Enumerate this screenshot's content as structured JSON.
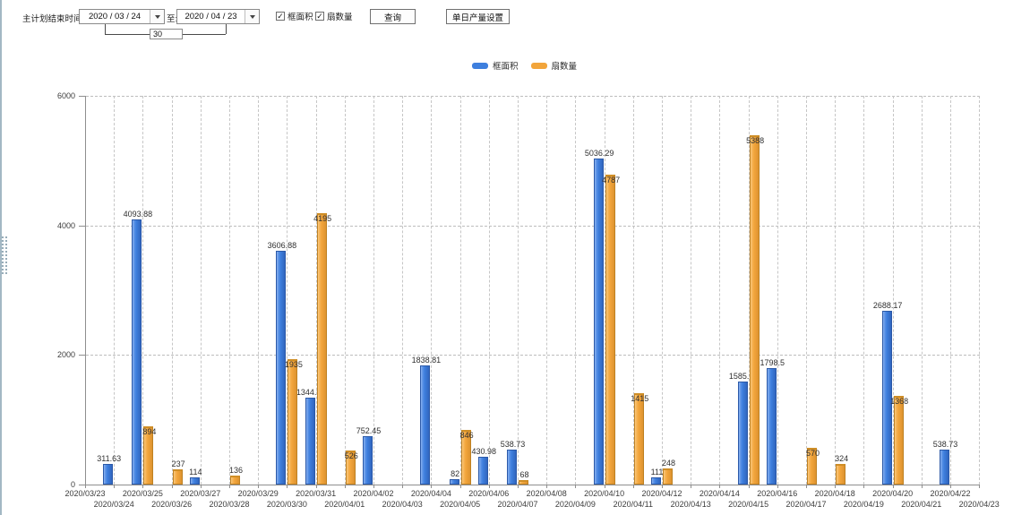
{
  "toolbar": {
    "label_plan_end": "主计划结束时间:",
    "date_from": "2020 / 03 / 24",
    "label_to": "至:",
    "date_to": "2020 / 04 / 23",
    "days_between": "30",
    "checkbox_frame_area": "框面积",
    "checkbox_fan_count": "扇数量",
    "checkbox_checked_glyph": "✓",
    "query_button": "查询",
    "daily_output_button": "单日产量设置"
  },
  "legend": {
    "items": [
      {
        "label": "框面积",
        "color": "#3e7fde"
      },
      {
        "label": "扇数量",
        "color": "#f2a53b"
      }
    ]
  },
  "chart_data": {
    "type": "bar",
    "title": "",
    "xlabel": "",
    "ylabel": "",
    "ylim": [
      0,
      6000
    ],
    "yticks": [
      0,
      2000,
      4000,
      6000
    ],
    "grid": true,
    "legend_position": "top",
    "categories": [
      "2020/03/23",
      "2020/03/24",
      "2020/03/25",
      "2020/03/26",
      "2020/03/27",
      "2020/03/28",
      "2020/03/29",
      "2020/03/30",
      "2020/03/31",
      "2020/04/01",
      "2020/04/02",
      "2020/04/03",
      "2020/04/04",
      "2020/04/05",
      "2020/04/06",
      "2020/04/07",
      "2020/04/08",
      "2020/04/09",
      "2020/04/10",
      "2020/04/11",
      "2020/04/12",
      "2020/04/13",
      "2020/04/14",
      "2020/04/15",
      "2020/04/16",
      "2020/04/17",
      "2020/04/18",
      "2020/04/19",
      "2020/04/20",
      "2020/04/21",
      "2020/04/22",
      "2020/04/23"
    ],
    "series": [
      {
        "name": "框面积",
        "color": "#3e7fde",
        "values": [
          null,
          311.63,
          4093.88,
          null,
          114,
          null,
          null,
          3606.88,
          1344.95,
          null,
          752.45,
          null,
          1838.81,
          82,
          430.98,
          538.73,
          null,
          null,
          5036.29,
          null,
          111,
          null,
          null,
          1585.96,
          1798.5,
          null,
          null,
          null,
          2688.17,
          null,
          538.73,
          null
        ]
      },
      {
        "name": "扇数量",
        "color": "#f2a53b",
        "values": [
          null,
          null,
          894,
          237,
          null,
          136,
          null,
          1935,
          4195,
          526,
          null,
          null,
          null,
          846,
          null,
          68,
          null,
          null,
          4787,
          1415,
          248,
          null,
          null,
          5388,
          null,
          570,
          324,
          null,
          1368,
          null,
          null,
          null
        ]
      }
    ]
  }
}
